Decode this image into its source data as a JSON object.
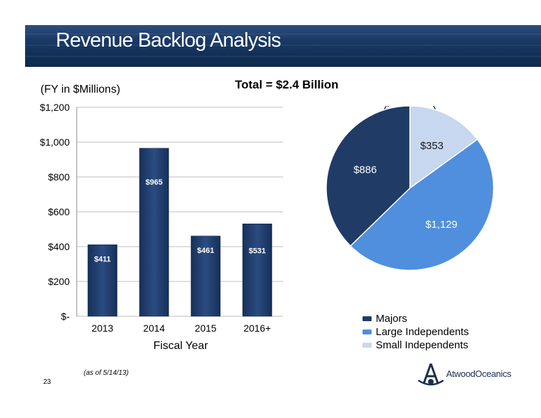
{
  "header": {
    "title": "Revenue Backlog Analysis"
  },
  "page": {
    "number": "23",
    "as_of": "(as of 5/14/13)"
  },
  "logo": {
    "text": "AtwoodOceanics"
  },
  "colors": {
    "bar": "#1f3b66",
    "majors": "#1f3b66",
    "large_independents": "#4f8fde",
    "small_independents": "#c7d7ef"
  },
  "chart_data": [
    {
      "type": "bar",
      "title": "Total = $2.4 Billion",
      "ylabel": "(FY in $Millions)",
      "xlabel": "Fiscal Year",
      "categories": [
        "2013",
        "2014",
        "2015",
        "2016+"
      ],
      "values": [
        411,
        965,
        461,
        531
      ],
      "value_labels": [
        "$411",
        "$965",
        "$461",
        "$531"
      ],
      "ylim": [
        0,
        1200
      ],
      "yticks": [
        0,
        200,
        400,
        600,
        800,
        1000,
        1200
      ],
      "ytick_labels": [
        "$-",
        "$200",
        "$400",
        "$600",
        "$800",
        "$1,000",
        "$1,200"
      ],
      "grid": true
    },
    {
      "type": "pie",
      "title": "(in Millions)",
      "labels": [
        "Majors",
        "Large Independents",
        "Small Independents"
      ],
      "values": [
        886,
        1129,
        353
      ],
      "value_labels": [
        "$886",
        "$1,129",
        "$353"
      ],
      "legend": "bottom"
    }
  ]
}
